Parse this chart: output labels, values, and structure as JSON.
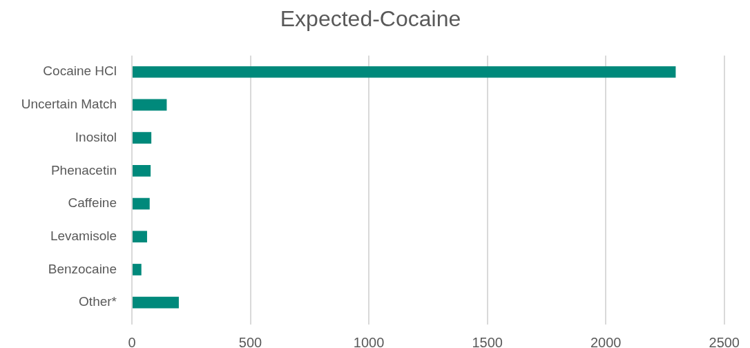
{
  "chart_data": {
    "type": "bar",
    "title": "Expected-Cocaine",
    "orientation": "horizontal",
    "categories": [
      "Cocaine HCl",
      "Uncertain Match",
      "Inositol",
      "Phenacetin",
      "Caffeine",
      "Levamisole",
      "Benzocaine",
      "Other*"
    ],
    "values": [
      2295,
      147,
      82,
      79,
      75,
      64,
      40,
      198
    ],
    "color": "#00897b",
    "xlim": [
      0,
      2500
    ],
    "xticks": [
      0,
      500,
      1000,
      1500,
      2000,
      2500
    ],
    "grid": "x"
  }
}
